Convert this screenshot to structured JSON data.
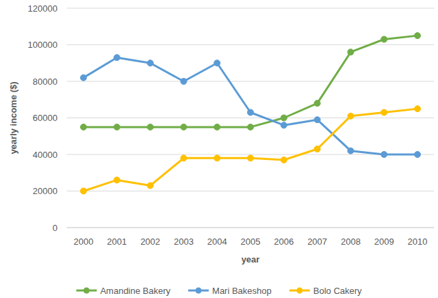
{
  "chart_data": {
    "type": "line",
    "x_label": "year",
    "y_label": "yearly income ($)",
    "categories": [
      "2000",
      "2001",
      "2002",
      "2003",
      "2004",
      "2005",
      "2006",
      "2007",
      "2008",
      "2009",
      "2010"
    ],
    "series": [
      {
        "name": "Amandine Bakery",
        "color": "#70ad47",
        "values": [
          55000,
          55000,
          55000,
          55000,
          55000,
          55000,
          60000,
          68000,
          96000,
          103000,
          105000
        ]
      },
      {
        "name": "Mari Bakeshop",
        "color": "#5b9bd5",
        "values": [
          82000,
          93000,
          90000,
          80000,
          90000,
          63000,
          56000,
          59000,
          42000,
          40000,
          40000
        ]
      },
      {
        "name": "Bolo Cakery",
        "color": "#ffc000",
        "values": [
          20000,
          26000,
          23000,
          38000,
          38000,
          38000,
          37000,
          43000,
          61000,
          63000,
          65000
        ]
      }
    ],
    "ylim": [
      0,
      120000
    ],
    "yticks": [
      0,
      20000,
      40000,
      60000,
      80000,
      100000,
      120000
    ],
    "grid": true,
    "legend": "bottom",
    "marker": "circle"
  }
}
